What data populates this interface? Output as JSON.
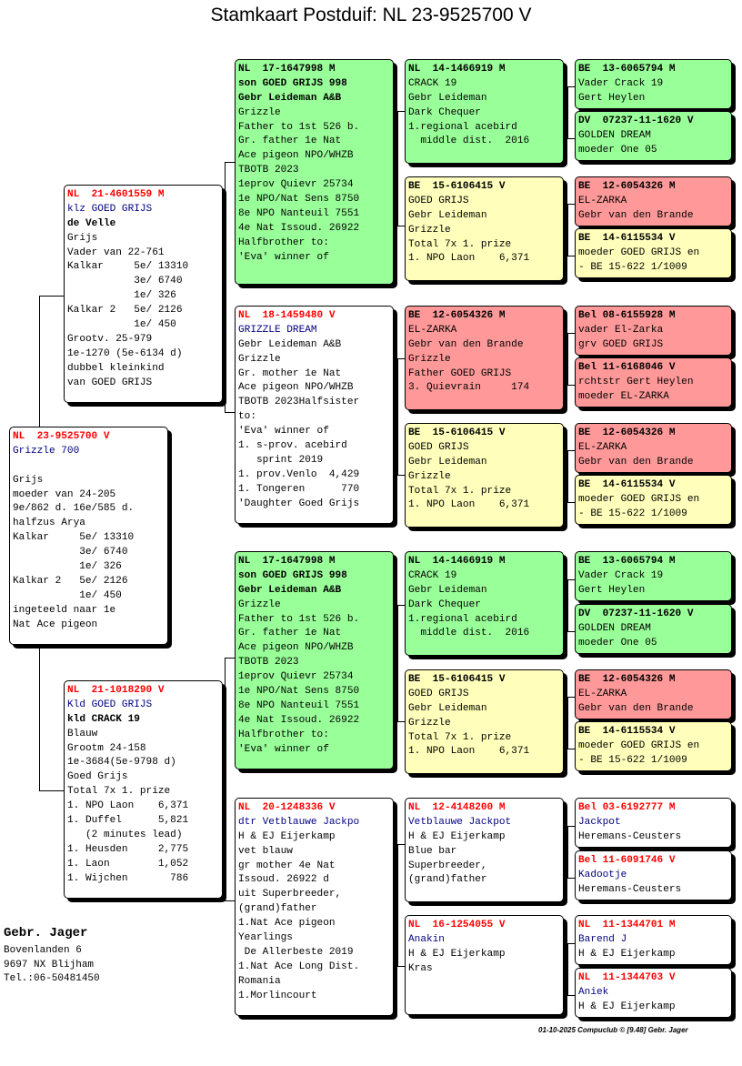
{
  "title": "Stamkaart Postduif: NL  23-9525700 V",
  "owner": {
    "name": "Gebr. Jager",
    "address": [
      "Bovenlanden 6",
      "9697 NX  Blijham",
      "Tel.:06-50481450"
    ]
  },
  "footer": "01-10-2025  Compuclub © [9.48]  Gebr. Jager",
  "colors": {
    "green": "#99ff99",
    "yellow": "#ffffbb",
    "red": "#ff9999",
    "white": "#ffffff",
    "red_text": "#ff0000",
    "blue_text": "#000080"
  },
  "cards": {
    "main": {
      "lines": [
        "NL  23-9525700 V",
        "Grizzle 700",
        "",
        "Grijs",
        "moeder van 24-205",
        "9e/862 d. 16e/585 d.",
        "halfzus Arya",
        "Kalkar     5e/ 13310",
        "           3e/ 6740",
        "           1e/ 326",
        "Kalkar 2   5e/ 2126",
        "           1e/ 450",
        "ingeteeld naar 1e",
        "Nat Ace pigeon"
      ]
    },
    "father": {
      "lines": [
        "NL  21-4601559 M",
        "klz GOED GRIJS",
        "de Velle",
        "Grijs",
        "Vader van 22-761",
        "Kalkar     5e/ 13310",
        "           3e/ 6740",
        "           1e/ 326",
        "Kalkar 2   5e/ 2126",
        "           1e/ 450",
        "Grootv. 25-979",
        "1e-1270 (5e-6134 d)",
        "dubbel kleinkind",
        "van GOED GRIJS"
      ]
    },
    "mother": {
      "lines": [
        "NL  21-1018290 V",
        "Kld GOED GRIJS",
        "kld CRACK 19",
        "Blauw",
        "Grootm 24-158",
        "1e-3684(5e-9798 d)",
        "Goed Grijs",
        "Total 7x 1. prize",
        "1. NPO Laon    6,371",
        "1. Duffel      5,821",
        "   (2 minutes lead)",
        "1. Heusden     2,775",
        "1. Laon        1,052",
        "1. Wijchen       786"
      ]
    },
    "ff": {
      "lines": [
        "NL  17-1647998 M",
        "son GOED GRIJS 998",
        "Gebr Leideman A&B",
        "Grizzle",
        "Father to 1st 526 b.",
        "Gr. father 1e Nat",
        "Ace pigeon NPO/WHZB",
        "TBOTB 2023",
        "1eprov Quievr 25734",
        "1e NPO/Nat Sens 8750",
        "8e NPO Nanteuil 7551",
        "4e Nat Issoud. 26922",
        "Halfbrother to:",
        "'Eva' winner of"
      ]
    },
    "fm": {
      "lines": [
        "NL  18-1459480 V",
        "GRIZZLE DREAM",
        "Gebr Leideman A&B",
        "Grizzle",
        "Gr. mother 1e Nat",
        "Ace pigeon NPO/WHZB",
        "TBOTB 2023Halfsister",
        "to:",
        "'Eva' winner of",
        "1. s-prov. acebird",
        "   sprint 2019",
        "1. prov.Venlo  4,429",
        "1. Tongeren      770",
        "'Daughter Goed Grijs"
      ]
    },
    "mf": {
      "lines": [
        "NL  17-1647998 M",
        "son GOED GRIJS 998",
        "Gebr Leideman A&B",
        "Grizzle",
        "Father to 1st 526 b.",
        "Gr. father 1e Nat",
        "Ace pigeon NPO/WHZB",
        "TBOTB 2023",
        "1eprov Quievr 25734",
        "1e NPO/Nat Sens 8750",
        "8e NPO Nanteuil 7551",
        "4e Nat Issoud. 26922",
        "Halfbrother to:",
        "'Eva' winner of"
      ]
    },
    "mm": {
      "lines": [
        "NL  20-1248336 V",
        "dtr Vetblauwe Jackpo",
        "H & EJ Eijerkamp",
        "vet blauw",
        "gr mother 4e Nat",
        "Issoud. 26922 d",
        "uit Superbreeder,",
        "(grand)father",
        "1.Nat Ace pigeon",
        "Yearlings",
        " De Allerbeste 2019",
        "1.Nat Ace Long Dist.",
        "Romania",
        "1.Morlincourt"
      ]
    },
    "fff": {
      "lines": [
        "NL  14-1466919 M",
        "CRACK 19",
        "Gebr Leideman",
        "Dark Chequer",
        "1.regional acebird",
        "  middle dist.  2016"
      ]
    },
    "ffm": {
      "lines": [
        "BE  15-6106415 V",
        "GOED GRIJS",
        "Gebr Leideman",
        "Grizzle",
        "Total 7x 1. prize",
        "1. NPO Laon    6,371"
      ]
    },
    "fmf": {
      "lines": [
        "BE  12-6054326 M",
        "EL-ZARKA",
        "Gebr van den Brande",
        "Grizzle",
        "Father GOED GRIJS",
        "3. Quievrain     174"
      ]
    },
    "fmm": {
      "lines": [
        "BE  15-6106415 V",
        "GOED GRIJS",
        "Gebr Leideman",
        "Grizzle",
        "Total 7x 1. prize",
        "1. NPO Laon    6,371"
      ]
    },
    "mff": {
      "lines": [
        "NL  14-1466919 M",
        "CRACK 19",
        "Gebr Leideman",
        "Dark Chequer",
        "1.regional acebird",
        "  middle dist.  2016"
      ]
    },
    "mfm": {
      "lines": [
        "BE  15-6106415 V",
        "GOED GRIJS",
        "Gebr Leideman",
        "Grizzle",
        "Total 7x 1. prize",
        "1. NPO Laon    6,371"
      ]
    },
    "mmf": {
      "lines": [
        "NL  12-4148200 M",
        "Vetblauwe Jackpot",
        "H & EJ Eijerkamp",
        "Blue bar",
        "Superbreeder,",
        "(grand)father"
      ]
    },
    "mmm": {
      "lines": [
        "NL  16-1254055 V",
        "Anakin",
        "H & EJ Eijerkamp",
        "Kras"
      ]
    },
    "g1": {
      "lines": [
        "BE  13-6065794 M",
        "Vader Crack 19",
        "Gert Heylen"
      ]
    },
    "g2": {
      "lines": [
        "DV  07237-11-1620 V",
        "GOLDEN DREAM",
        "moeder One 05"
      ]
    },
    "g3": {
      "lines": [
        "BE  12-6054326 M",
        "EL-ZARKA",
        "Gebr van den Brande"
      ]
    },
    "g4": {
      "lines": [
        "BE  14-6115534 V",
        "moeder GOED GRIJS en",
        "- BE 15-622 1/1009"
      ]
    },
    "g5": {
      "lines": [
        "Bel 08-6155928 M",
        "vader El-Zarka",
        "grv GOED GRIJS"
      ]
    },
    "g6": {
      "lines": [
        "Bel 11-6168046 V",
        "rchtstr Gert Heylen",
        "moeder EL-ZARKA"
      ]
    },
    "g7": {
      "lines": [
        "BE  12-6054326 M",
        "EL-ZARKA",
        "Gebr van den Brande"
      ]
    },
    "g8": {
      "lines": [
        "BE  14-6115534 V",
        "moeder GOED GRIJS en",
        "- BE 15-622 1/1009"
      ]
    },
    "g9": {
      "lines": [
        "BE  13-6065794 M",
        "Vader Crack 19",
        "Gert Heylen"
      ]
    },
    "g10": {
      "lines": [
        "DV  07237-11-1620 V",
        "GOLDEN DREAM",
        "moeder One 05"
      ]
    },
    "g11": {
      "lines": [
        "BE  12-6054326 M",
        "EL-ZARKA",
        "Gebr van den Brande"
      ]
    },
    "g12": {
      "lines": [
        "BE  14-6115534 V",
        "moeder GOED GRIJS en",
        "- BE 15-622 1/1009"
      ]
    },
    "g13": {
      "lines": [
        "Bel 03-6192777 M",
        "Jackpot",
        "Heremans-Ceusters"
      ]
    },
    "g14": {
      "lines": [
        "Bel 11-6091746 V",
        "Kadootje",
        "Heremans-Ceusters"
      ]
    },
    "g15": {
      "lines": [
        "NL  11-1344701 M",
        "Barend J",
        "H & EJ Eijerkamp"
      ]
    },
    "g16": {
      "lines": [
        "NL  11-1344703 V",
        "Aniek",
        "H & EJ Eijerkamp"
      ]
    }
  }
}
